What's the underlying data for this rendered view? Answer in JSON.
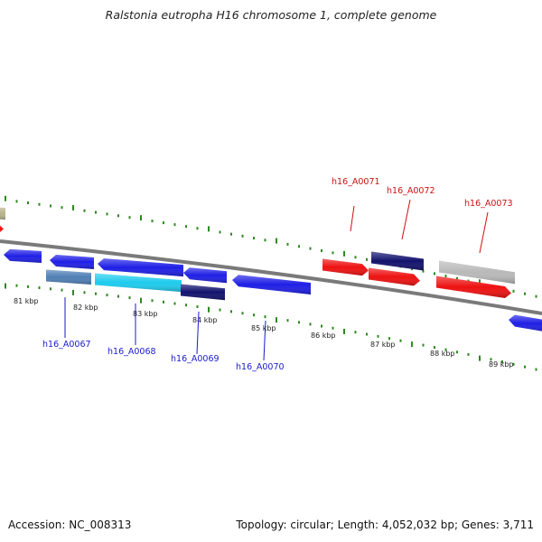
{
  "title": "Ralstonia eutropha H16 chromosome 1, complete genome",
  "footer": {
    "accession": "Accession: NC_008313",
    "summary": "Topology: circular; Length: 4,052,032 bp; Genes: 3,711"
  },
  "kbp_labels": [
    "81 kbp",
    "82 kbp",
    "83 kbp",
    "84 kbp",
    "85 kbp",
    "86 kbp",
    "87 kbp",
    "88 kbp",
    "89 kbp"
  ],
  "gene_labels": [
    {
      "text": "h16_A0067",
      "color": "#1a1acc"
    },
    {
      "text": "h16_A0068",
      "color": "#1a1acc"
    },
    {
      "text": "h16_A0069",
      "color": "#1a1acc"
    },
    {
      "text": "h16_A0070",
      "color": "#1a1acc"
    },
    {
      "text": "h16_A0071",
      "color": "#cc1111"
    },
    {
      "text": "h16_A0072",
      "color": "#cc1111"
    },
    {
      "text": "h16_A0073",
      "color": "#cc1111"
    }
  ],
  "colors": {
    "backbone": "#7a7a7a",
    "tick": "#2d8a1f",
    "blue": "#1f1fe6",
    "navy": "#12126e",
    "cyan": "#1ecbee",
    "steel": "#4f7fb5",
    "red": "#ee1111",
    "gray": "#b9b9b9",
    "olive": "#b8b38a"
  }
}
